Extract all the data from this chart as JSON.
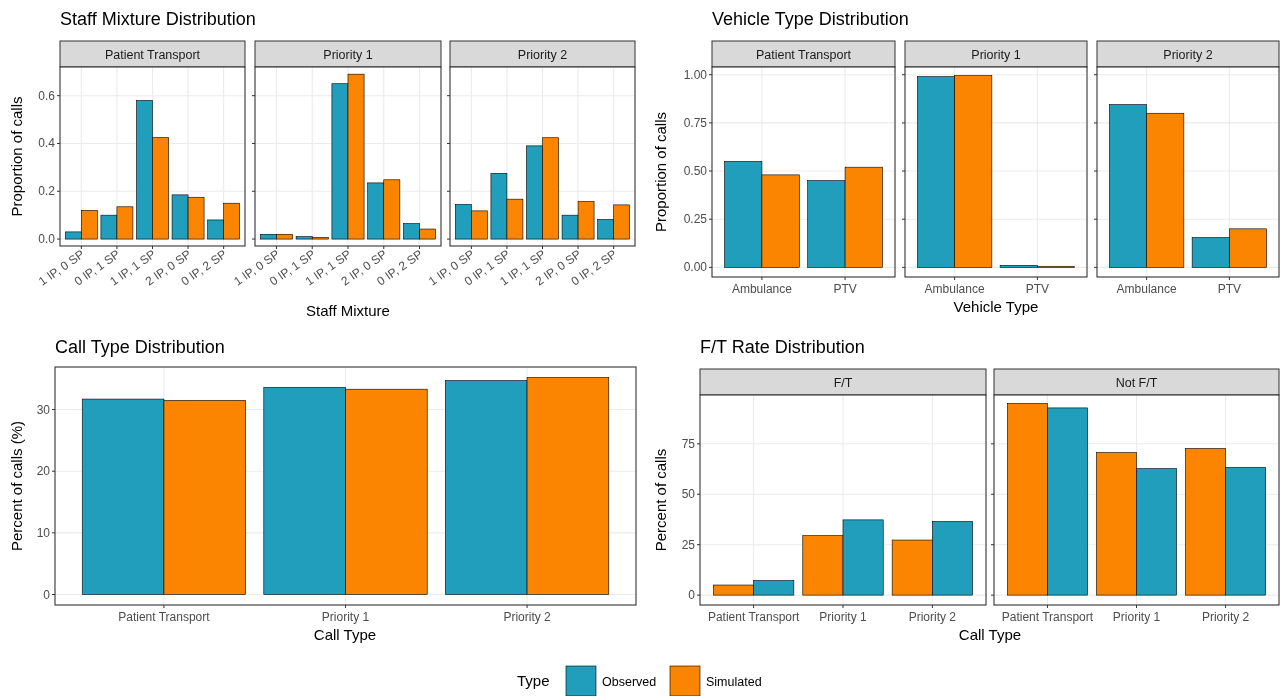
{
  "chart_data": [
    {
      "type": "bar",
      "title": "Staff Mixture Distribution",
      "subtitle": "Patient Transport",
      "ylabel": "Proportion of calls",
      "categories": [
        "1 IP, 0 SP",
        "0 IP, 1 SP",
        "1 IP, 1 SP",
        "2 IP, 0 SP",
        "0 IP, 2 SP"
      ],
      "series": [
        {
          "color": "#219ebc",
          "values": [
            0.03,
            0.1,
            0.58,
            0.185,
            0.08
          ]
        },
        {
          "color": "#fb8500",
          "values": [
            0.12,
            0.135,
            0.425,
            0.175,
            0.15
          ]
        }
      ],
      "ylim": [
        -0.029,
        0.72
      ],
      "yticks": [
        {
          "value": 0,
          "label": "0.0"
        },
        {
          "value": 0.2,
          "label": "0.2"
        },
        {
          "value": 0.4,
          "label": "0.4"
        },
        {
          "value": 0.6,
          "label": "0.6"
        }
      ],
      "grid": true
    },
    {
      "type": "bar",
      "subtitle": "Priority 1",
      "xlabel": "Staff Mixture",
      "categories": [
        "1 IP, 0 SP",
        "0 IP, 1 SP",
        "1 IP, 1 SP",
        "2 IP, 0 SP",
        "0 IP, 2 SP"
      ],
      "series": [
        {
          "color": "#219ebc",
          "values": [
            0.02,
            0.01,
            0.65,
            0.235,
            0.065
          ]
        },
        {
          "color": "#fb8500",
          "values": [
            0.02,
            0.007,
            0.69,
            0.248,
            0.042
          ]
        }
      ],
      "ylim": [
        -0.029,
        0.72
      ],
      "yticks": [
        {
          "value": 0,
          "label": null
        },
        {
          "value": 0.2,
          "label": null
        },
        {
          "value": 0.4,
          "label": null
        },
        {
          "value": 0.6,
          "label": null
        }
      ],
      "grid": true,
      "tick_labels": "x"
    },
    {
      "type": "bar",
      "subtitle": "Priority 2",
      "categories": [
        "1 IP, 0 SP",
        "0 IP, 1 SP",
        "1 IP, 1 SP",
        "2 IP, 0 SP",
        "0 IP, 2 SP"
      ],
      "series": [
        {
          "color": "#219ebc",
          "values": [
            0.145,
            0.275,
            0.39,
            0.1,
            0.082
          ]
        },
        {
          "color": "#fb8500",
          "values": [
            0.118,
            0.167,
            0.424,
            0.157,
            0.143
          ]
        }
      ],
      "ylim": [
        -0.029,
        0.72
      ],
      "yticks": [
        {
          "value": 0,
          "label": null
        },
        {
          "value": 0.2,
          "label": null
        },
        {
          "value": 0.4,
          "label": null
        },
        {
          "value": 0.6,
          "label": null
        }
      ],
      "grid": true,
      "tick_labels": "x"
    },
    {
      "type": "bar",
      "title": "Vehicle Type Distribution",
      "subtitle": "Patient Transport",
      "ylabel": "Proportion of calls",
      "categories": [
        "Ambulance",
        "PTV"
      ],
      "series": [
        {
          "color": "#219ebc",
          "values": [
            0.55,
            0.45
          ]
        },
        {
          "color": "#fb8500",
          "values": [
            0.48,
            0.52
          ]
        }
      ],
      "ylim": [
        -0.05,
        1.04
      ],
      "yticks": [
        {
          "value": 0,
          "label": "0.00"
        },
        {
          "value": 0.25,
          "label": "0.25"
        },
        {
          "value": 0.5,
          "label": "0.50"
        },
        {
          "value": 0.75,
          "label": "0.75"
        },
        {
          "value": 1,
          "label": "1.00"
        }
      ],
      "grid": true
    },
    {
      "type": "bar",
      "subtitle": "Priority 1",
      "xlabel": "Vehicle Type",
      "categories": [
        "Ambulance",
        "PTV"
      ],
      "series": [
        {
          "color": "#219ebc",
          "values": [
            0.99,
            0.01
          ]
        },
        {
          "color": "#fb8500",
          "values": [
            0.995,
            0.005
          ]
        }
      ],
      "ylim": [
        -0.05,
        1.04
      ],
      "yticks": [
        {
          "value": 0,
          "label": null
        },
        {
          "value": 0.25,
          "label": null
        },
        {
          "value": 0.5,
          "label": null
        },
        {
          "value": 0.75,
          "label": null
        },
        {
          "value": 1,
          "label": null
        }
      ],
      "grid": true,
      "tick_labels": "x"
    },
    {
      "type": "bar",
      "subtitle": "Priority 2",
      "categories": [
        "Ambulance",
        "PTV"
      ],
      "series": [
        {
          "color": "#219ebc",
          "values": [
            0.845,
            0.155
          ]
        },
        {
          "color": "#fb8500",
          "values": [
            0.8,
            0.2
          ]
        }
      ],
      "ylim": [
        -0.05,
        1.04
      ],
      "yticks": [
        {
          "value": 0,
          "label": null
        },
        {
          "value": 0.25,
          "label": null
        },
        {
          "value": 0.5,
          "label": null
        },
        {
          "value": 0.75,
          "label": null
        },
        {
          "value": 1,
          "label": null
        }
      ],
      "grid": true,
      "tick_labels": "x"
    },
    {
      "type": "bar",
      "title": "Call Type Distribution",
      "xlabel": "Call Type",
      "ylabel": "Percent of calls (%)",
      "categories": [
        "Patient Transport",
        "Priority 1",
        "Priority 2"
      ],
      "series": [
        {
          "name": "Observed",
          "color": "#219ebc",
          "values": [
            31.7,
            33.6,
            34.7
          ]
        },
        {
          "name": "Simulated",
          "color": "#fb8500",
          "values": [
            31.5,
            33.3,
            35.2
          ]
        }
      ],
      "ylim": [
        -1.7,
        36.9
      ],
      "yticks": [
        0,
        10,
        20,
        30
      ],
      "grid": true,
      "legend": "bottom",
      "legend_title": "Type"
    },
    {
      "type": "bar",
      "title": "F/T Rate Distribution",
      "subtitle": "F/T",
      "xlabel": "Call Type",
      "ylabel": "Percent of calls",
      "categories": [
        "Patient Transport",
        "Priority 1",
        "Priority 2"
      ],
      "series": [
        {
          "color": "#fb8500",
          "values": [
            5,
            29.5,
            27.3
          ]
        },
        {
          "color": "#219ebc",
          "values": [
            7.2,
            37.3,
            36.5
          ]
        }
      ],
      "ylim": [
        -4.9,
        99.2
      ],
      "yticks": [
        0,
        25,
        50,
        75
      ],
      "grid": true
    },
    {
      "type": "bar",
      "subtitle": "Not F/T",
      "categories": [
        "Patient Transport",
        "Priority 1",
        "Priority 2"
      ],
      "series": [
        {
          "color": "#fb8500",
          "values": [
            95,
            70.7,
            72.7
          ]
        },
        {
          "color": "#219ebc",
          "values": [
            92.8,
            62.7,
            63.3
          ]
        }
      ],
      "ylim": [
        -4.9,
        99.2
      ],
      "yticks": [
        {
          "value": 0,
          "label": null
        },
        {
          "value": 25,
          "label": null
        },
        {
          "value": 50,
          "label": null
        },
        {
          "value": 75,
          "label": null
        }
      ],
      "grid": true,
      "tick_labels": "x"
    }
  ]
}
